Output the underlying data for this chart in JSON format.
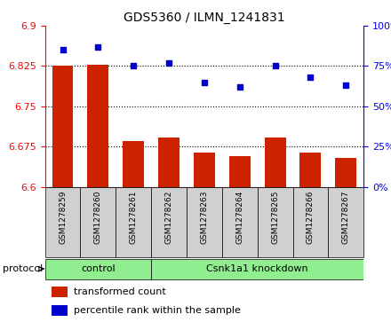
{
  "title": "GDS5360 / ILMN_1241831",
  "samples": [
    "GSM1278259",
    "GSM1278260",
    "GSM1278261",
    "GSM1278262",
    "GSM1278263",
    "GSM1278264",
    "GSM1278265",
    "GSM1278266",
    "GSM1278267"
  ],
  "transformed_count": [
    6.825,
    6.828,
    6.685,
    6.692,
    6.664,
    6.657,
    6.692,
    6.664,
    6.654
  ],
  "percentile_rank": [
    85,
    87,
    75,
    77,
    65,
    62,
    75,
    68,
    63
  ],
  "ylim_left": [
    6.6,
    6.9
  ],
  "ylim_right": [
    0,
    100
  ],
  "yticks_left_shown": [
    6.6,
    6.675,
    6.75,
    6.825,
    6.9
  ],
  "yticks_right_shown": [
    0,
    25,
    50,
    75,
    100
  ],
  "dotted_lines": [
    6.675,
    6.75,
    6.825
  ],
  "bar_color": "#cc2200",
  "dot_color": "#0000cc",
  "bar_width": 0.6,
  "legend_items": [
    {
      "label": "transformed count",
      "color": "#cc2200"
    },
    {
      "label": "percentile rank within the sample",
      "color": "#0000cc"
    }
  ],
  "protocol_label": "protocol",
  "control_label": "control",
  "knockdown_label": "Csnk1a1 knockdown",
  "control_count": 3,
  "knockdown_count": 6,
  "xticklabel_bg": "#d0d0d0",
  "green_color": "#90ee90"
}
